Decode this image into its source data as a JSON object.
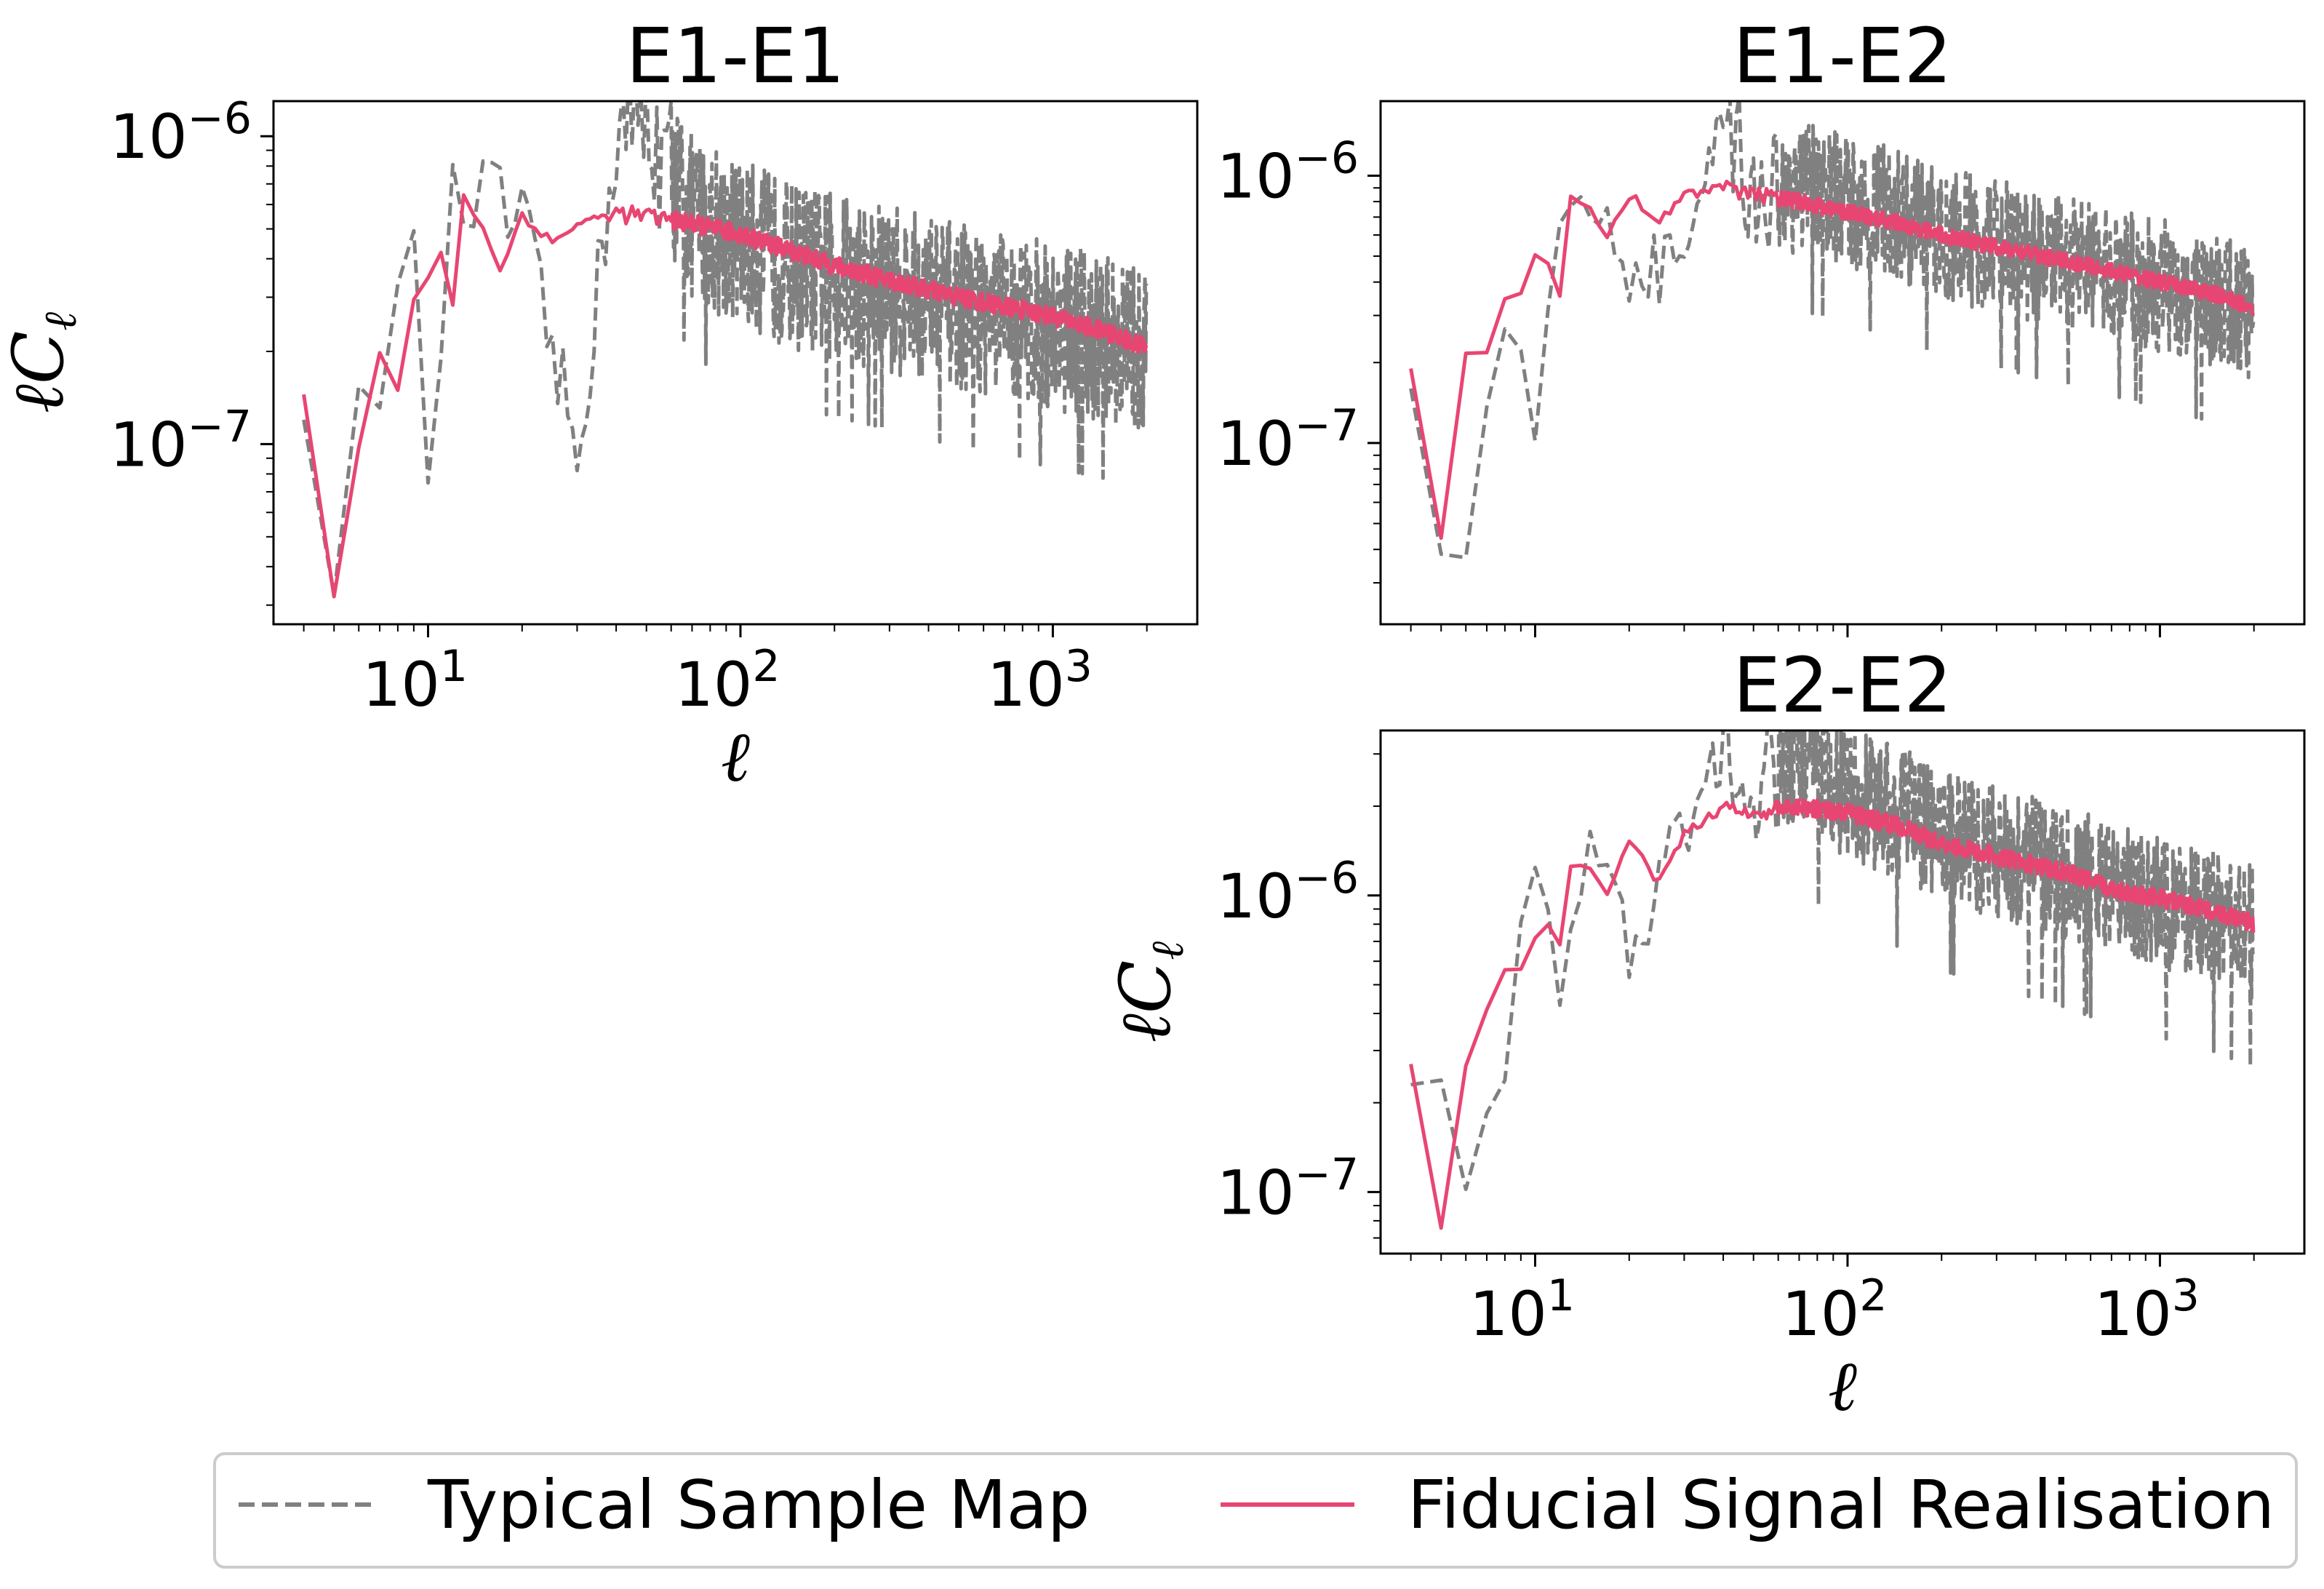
{
  "chart_data": [
    {
      "type": "line",
      "title": "E1-E1",
      "xlabel": "ℓ",
      "ylabel": "ℓC_ℓ",
      "xscale": "log",
      "yscale": "log",
      "xlim": [
        3.2,
        2900
      ],
      "ylim": [
        2.6e-08,
        1.3e-06
      ],
      "xticks": [
        {
          "value": 10,
          "label": "10^1"
        },
        {
          "value": 100,
          "label": "10^2"
        },
        {
          "value": 1000,
          "label": "10^3"
        }
      ],
      "yticks": [
        {
          "value": 1e-07,
          "label": "10^-7"
        },
        {
          "value": 1e-06,
          "label": "10^-6"
        }
      ],
      "series": [
        {
          "name": "Typical Sample Map",
          "style": "dashed",
          "color": "#808080",
          "x": [
            4,
            5,
            6,
            7,
            8,
            9,
            10,
            12,
            15,
            20,
            30,
            40,
            50,
            70,
            100,
            150,
            200,
            300,
            500,
            700,
            1000,
            1500,
            2000
          ],
          "y": [
            1.2e-07,
            4.4e-08,
            1.1e-07,
            1.9e-07,
            2.7e-07,
            3.6e-07,
            8.5e-08,
            5.6e-07,
            6.3e-07,
            5e-07,
            9e-08,
            1e-06,
            1.1e-06,
            5.5e-07,
            4.5e-07,
            3.8e-07,
            3.5e-07,
            3.2e-07,
            2.8e-07,
            2.6e-07,
            2.4e-07,
            2.2e-07,
            2e-07
          ],
          "scatter": 0.55
        },
        {
          "name": "Fiducial Signal Realisation",
          "style": "solid",
          "color": "#e84672",
          "x": [
            4,
            5,
            6,
            7,
            8,
            9,
            10,
            11,
            12,
            13,
            15,
            17,
            20,
            25,
            30,
            40,
            50,
            70,
            100,
            150,
            200,
            300,
            500,
            700,
            1000,
            1500,
            2000
          ],
          "y": [
            1.45e-07,
            3.2e-08,
            1e-07,
            2e-07,
            1.5e-07,
            2.9e-07,
            3.5e-07,
            4.2e-07,
            2.9e-07,
            6.5e-07,
            5e-07,
            3.6e-07,
            5.6e-07,
            4.5e-07,
            5.2e-07,
            5.6e-07,
            5.5e-07,
            5.2e-07,
            4.8e-07,
            4.2e-07,
            3.8e-07,
            3.4e-07,
            3e-07,
            2.8e-07,
            2.6e-07,
            2.3e-07,
            2.05e-07
          ],
          "scatter": 0.06
        }
      ]
    },
    {
      "type": "line",
      "title": "E1-E2",
      "xlabel": "",
      "ylabel": "",
      "xscale": "log",
      "yscale": "log",
      "xlim": [
        3.2,
        2900
      ],
      "ylim": [
        2.1e-08,
        1.9e-06
      ],
      "xticks": [],
      "yticks": [
        {
          "value": 1e-07,
          "label": "10^-7"
        },
        {
          "value": 1e-06,
          "label": "10^-6"
        }
      ],
      "series": [
        {
          "name": "Typical Sample Map",
          "style": "dashed",
          "color": "#808080",
          "x": [
            4,
            5,
            6,
            7,
            8,
            9,
            10,
            12,
            15,
            20,
            30,
            40,
            50,
            70,
            100,
            150,
            200,
            300,
            500,
            700,
            1000,
            1500,
            2000
          ],
          "y": [
            1.6e-07,
            4.5e-08,
            5e-08,
            1.5e-07,
            2e-07,
            3e-07,
            1.3e-07,
            5.5e-07,
            8.8e-07,
            4e-07,
            5e-07,
            1.4e-06,
            9e-07,
            9e-07,
            8e-07,
            7e-07,
            6e-07,
            5.5e-07,
            4.7e-07,
            4.3e-07,
            3.9e-07,
            3.4e-07,
            3e-07
          ],
          "scatter": 0.5
        },
        {
          "name": "Fiducial Signal Realisation",
          "style": "solid",
          "color": "#e84672",
          "x": [
            4,
            5,
            6,
            7,
            8,
            9,
            10,
            11,
            12,
            13,
            15,
            17,
            20,
            25,
            30,
            40,
            50,
            70,
            100,
            150,
            200,
            300,
            500,
            700,
            1000,
            1500,
            2000
          ],
          "y": [
            1.9e-07,
            4.3e-08,
            2.2e-07,
            2.2e-07,
            3.6e-07,
            3.6e-07,
            5e-07,
            4.8e-07,
            3.5e-07,
            8.7e-07,
            7.5e-07,
            6e-07,
            8.5e-07,
            6.8e-07,
            8.5e-07,
            9e-07,
            8.5e-07,
            8e-07,
            7.3e-07,
            6.6e-07,
            6e-07,
            5.4e-07,
            4.8e-07,
            4.4e-07,
            4e-07,
            3.6e-07,
            3.2e-07
          ],
          "scatter": 0.06
        }
      ]
    },
    {
      "type": "line",
      "title": "E2-E2",
      "xlabel": "ℓ",
      "ylabel": "ℓC_ℓ",
      "xscale": "log",
      "yscale": "log",
      "xlim": [
        3.2,
        2900
      ],
      "ylim": [
        6.2e-08,
        3.6e-06
      ],
      "xticks": [
        {
          "value": 10,
          "label": "10^1"
        },
        {
          "value": 100,
          "label": "10^2"
        },
        {
          "value": 1000,
          "label": "10^3"
        }
      ],
      "yticks": [
        {
          "value": 1e-07,
          "label": "10^-7"
        },
        {
          "value": 1e-06,
          "label": "10^-6"
        }
      ],
      "series": [
        {
          "name": "Typical Sample Map",
          "style": "dashed",
          "color": "#808080",
          "x": [
            4,
            5,
            6,
            7,
            8,
            9,
            10,
            12,
            15,
            20,
            30,
            40,
            50,
            70,
            100,
            150,
            200,
            300,
            500,
            700,
            1000,
            1500,
            2000
          ],
          "y": [
            2.3e-07,
            1.8e-07,
            1e-07,
            1.8e-07,
            3e-07,
            6e-07,
            1.4e-06,
            5e-07,
            1.5e-06,
            7e-07,
            1.6e-06,
            3e-06,
            2.5e-06,
            3e-06,
            2.2e-06,
            1.9e-06,
            1.6e-06,
            1.4e-06,
            1.2e-06,
            1.05e-06,
            9.5e-07,
            8.5e-07,
            7.5e-07
          ],
          "scatter": 0.45
        },
        {
          "name": "Fiducial Signal Realisation",
          "style": "solid",
          "color": "#e84672",
          "x": [
            4,
            5,
            6,
            7,
            8,
            9,
            10,
            11,
            12,
            13,
            15,
            17,
            20,
            25,
            30,
            40,
            50,
            70,
            100,
            150,
            200,
            300,
            500,
            700,
            1000,
            1500,
            2000
          ],
          "y": [
            2.7e-07,
            7.5e-08,
            2.6e-07,
            4e-07,
            5.5e-07,
            5.5e-07,
            7e-07,
            8e-07,
            7e-07,
            1.3e-06,
            1.2e-06,
            1e-06,
            1.5e-06,
            1.1e-06,
            1.6e-06,
            2e-06,
            1.9e-06,
            2e-06,
            1.9e-06,
            1.7e-06,
            1.5e-06,
            1.35e-06,
            1.2e-06,
            1.05e-06,
            9.8e-07,
            8.8e-07,
            8e-07
          ],
          "scatter": 0.06
        }
      ]
    }
  ],
  "legend": {
    "position": "bottom-center",
    "entries": [
      {
        "label": "Typical Sample Map",
        "style": "dashed",
        "color": "#808080"
      },
      {
        "label": "Fiducial Signal Realisation",
        "style": "solid",
        "color": "#e84672"
      }
    ]
  }
}
